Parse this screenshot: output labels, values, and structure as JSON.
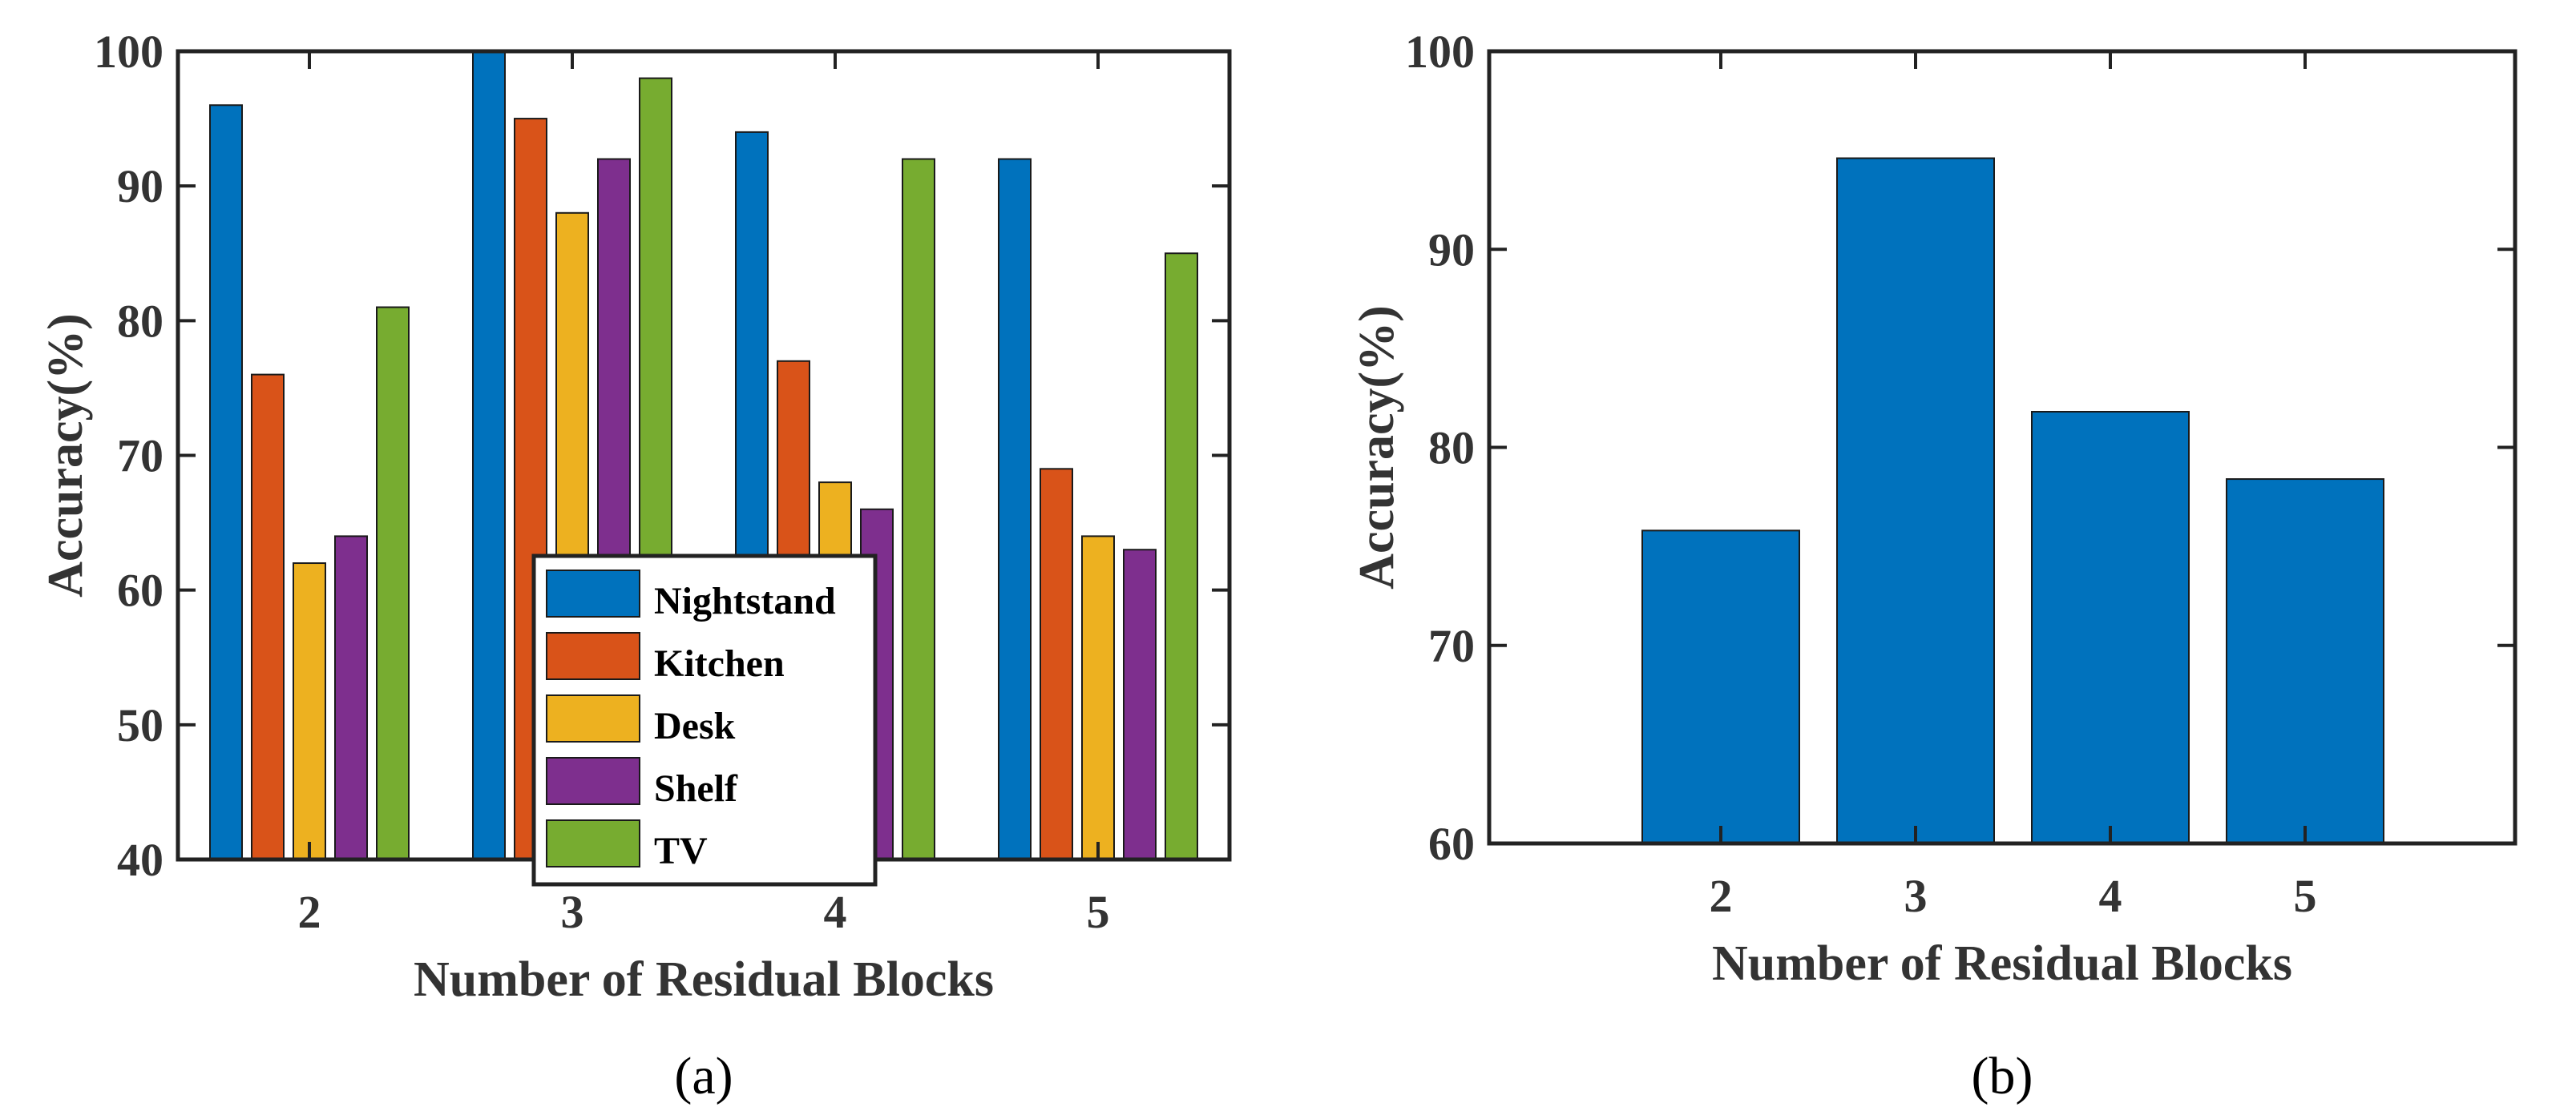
{
  "chart_data": [
    {
      "type": "bar",
      "caption": "(a)",
      "xlabel": "Number of Residual Blocks",
      "ylabel": "Accuracy(%)",
      "ylim": [
        40,
        100
      ],
      "yticks": [
        40,
        50,
        60,
        70,
        80,
        90,
        100
      ],
      "categories": [
        "2",
        "3",
        "4",
        "5"
      ],
      "legend_position": "bottom-center",
      "series": [
        {
          "name": "Nightstand",
          "color": "#0072BD",
          "values": [
            96,
            100,
            94,
            92
          ]
        },
        {
          "name": "Kitchen",
          "color": "#D95319",
          "values": [
            76,
            95,
            77,
            69
          ]
        },
        {
          "name": "Desk",
          "color": "#EDB120",
          "values": [
            62,
            88,
            68,
            64
          ]
        },
        {
          "name": "Shelf",
          "color": "#7E2F8E",
          "values": [
            64,
            92,
            66,
            63
          ]
        },
        {
          "name": "TV",
          "color": "#77AC30",
          "values": [
            81,
            98,
            92,
            85
          ]
        }
      ]
    },
    {
      "type": "bar",
      "caption": "(b)",
      "xlabel": "Number of Residual Blocks",
      "ylabel": "Accuracy(%)",
      "ylim": [
        60,
        100
      ],
      "yticks": [
        60,
        70,
        80,
        90,
        100
      ],
      "categories": [
        "2",
        "3",
        "4",
        "5"
      ],
      "series": [
        {
          "name": "Accuracy",
          "color": "#0072BD",
          "values": [
            75.8,
            94.6,
            81.8,
            78.4
          ]
        }
      ]
    }
  ]
}
